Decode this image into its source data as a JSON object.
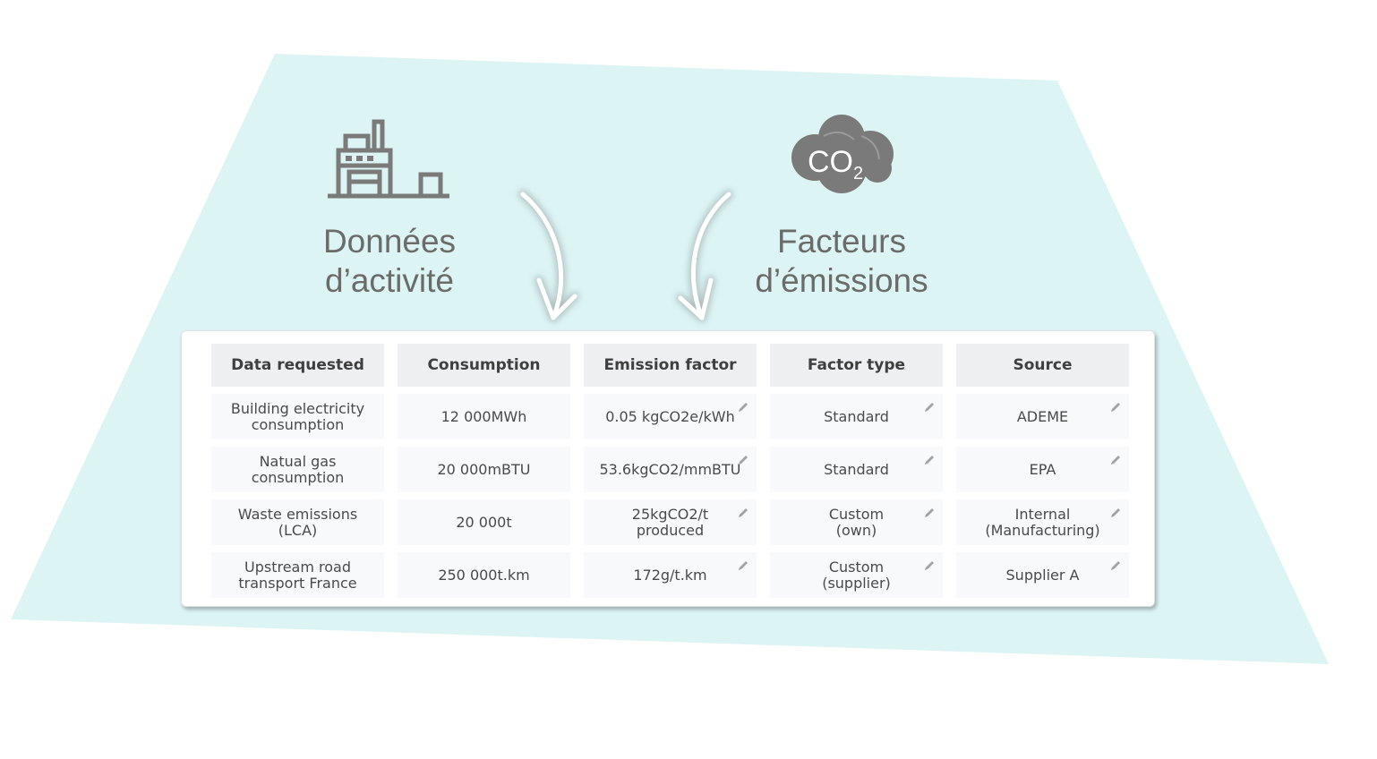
{
  "headings": {
    "activity": [
      "Données",
      "d’activité"
    ],
    "factors": [
      "Facteurs",
      "d’émissions"
    ]
  },
  "icons": {
    "left": "factory-icon",
    "right": "co2-cloud-icon",
    "cloud_label": "CO2"
  },
  "colors": {
    "background_shape": "#dcf4f4",
    "icon": "#7a7a7a",
    "heading": "#6b6b6b",
    "header_cell": "#eeeff0",
    "data_cell": "#f8f9fa"
  },
  "table": {
    "columns": [
      "Data requested",
      "Consumption",
      "Emission factor",
      "Factor type",
      "Source"
    ],
    "rows": [
      [
        "Building electricity\nconsumption",
        "12 000MWh",
        "0.05 kgCO2e/kWh",
        "Standard",
        "ADEME"
      ],
      [
        "Natual gas\nconsumption",
        "20 000mBTU",
        "53.6kgCO2/mmBTU",
        "Standard",
        "EPA"
      ],
      [
        "Waste emissions\n(LCA)",
        "20 000t",
        "25kgCO2/t\nproduced",
        "Custom\n(own)",
        "Internal\n(Manufacturing)"
      ],
      [
        "Upstream road\ntransport  France",
        "250 000t.km",
        "172g/t.km",
        "Custom\n(supplier)",
        "Supplier A"
      ]
    ],
    "editable_columns": [
      2,
      3,
      4
    ]
  }
}
